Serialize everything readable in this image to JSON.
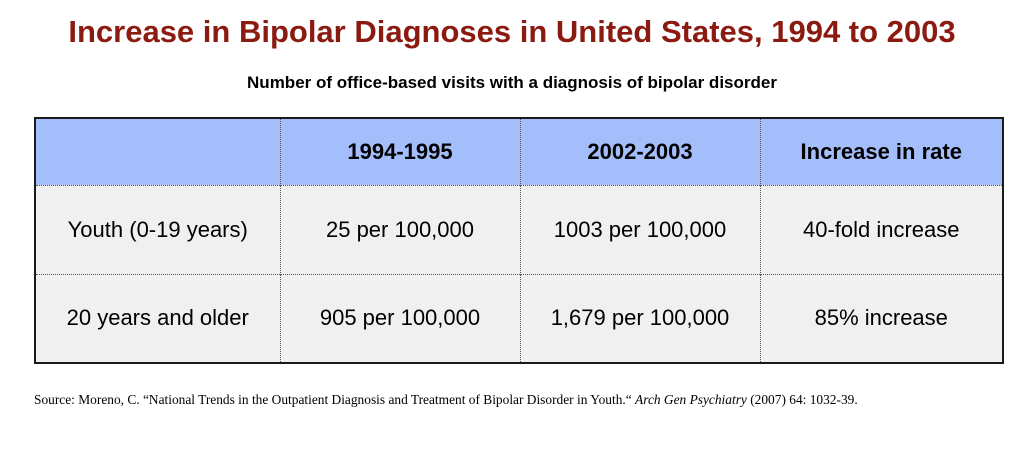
{
  "title": "Increase in Bipolar Diagnoses in United States, 1994 to 2003",
  "subtitle": "Number of office-based visits with a diagnosis of bipolar disorder",
  "table": {
    "headers": [
      "",
      "1994-1995",
      "2002-2003",
      "Increase in rate"
    ],
    "rows": [
      [
        "Youth (0-19 years)",
        "25 per 100,000",
        "1003 per 100,000",
        "40-fold increase"
      ],
      [
        "20 years and older",
        "905 per 100,000",
        "1,679 per 100,000",
        "85% increase"
      ]
    ]
  },
  "source": {
    "prefix": "Source: Moreno, C. “National Trends in the Outpatient Diagnosis and Treatment of Bipolar Disorder in Youth.“ ",
    "journal": "Arch Gen Psychiatry",
    "suffix": " (2007) 64: 1032-39."
  },
  "colors": {
    "title": "#8b1a10",
    "header_background": "#a4bdfb",
    "row_background": "#f0f0f0"
  }
}
